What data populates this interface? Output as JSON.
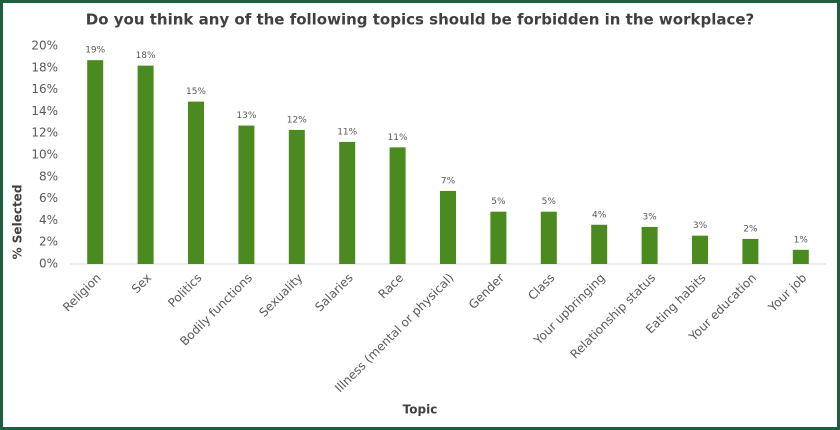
{
  "chart_data": {
    "type": "bar",
    "title": "Do you think any of the following topics should be forbidden in the workplace?",
    "x_label": "Topic",
    "y_label": "% Selected",
    "categories": [
      "Religion",
      "Sex",
      "Politics",
      "Bodily functions",
      "Sexuality",
      "Salaries",
      "Race",
      "Illness (mental or physical)",
      "Gender",
      "Class",
      "Your upbringing",
      "Relationship status",
      "Eating habits",
      "Your education",
      "Your job"
    ],
    "values": [
      18.7,
      18.2,
      14.9,
      12.7,
      12.3,
      11.2,
      10.7,
      6.7,
      4.8,
      4.8,
      3.6,
      3.4,
      2.6,
      2.3,
      1.3
    ],
    "value_labels": [
      "19%",
      "18%",
      "15%",
      "13%",
      "12%",
      "11%",
      "11%",
      "7%",
      "5%",
      "5%",
      "4%",
      "3%",
      "3%",
      "2%",
      "1%"
    ],
    "color": "#4b8a1e",
    "ylim": [
      0,
      20
    ],
    "yticks": [
      {
        "value": 0,
        "label": "0%"
      },
      {
        "value": 2,
        "label": "2%"
      },
      {
        "value": 4,
        "label": "4%"
      },
      {
        "value": 6,
        "label": "6%"
      },
      {
        "value": 8,
        "label": "8%"
      },
      {
        "value": 10,
        "label": "10%"
      },
      {
        "value": 12,
        "label": "12%"
      },
      {
        "value": 14,
        "label": "14%"
      },
      {
        "value": 16,
        "label": "16%"
      },
      {
        "value": 18,
        "label": "18%"
      },
      {
        "value": 20,
        "label": "20%"
      }
    ],
    "grid": false
  }
}
